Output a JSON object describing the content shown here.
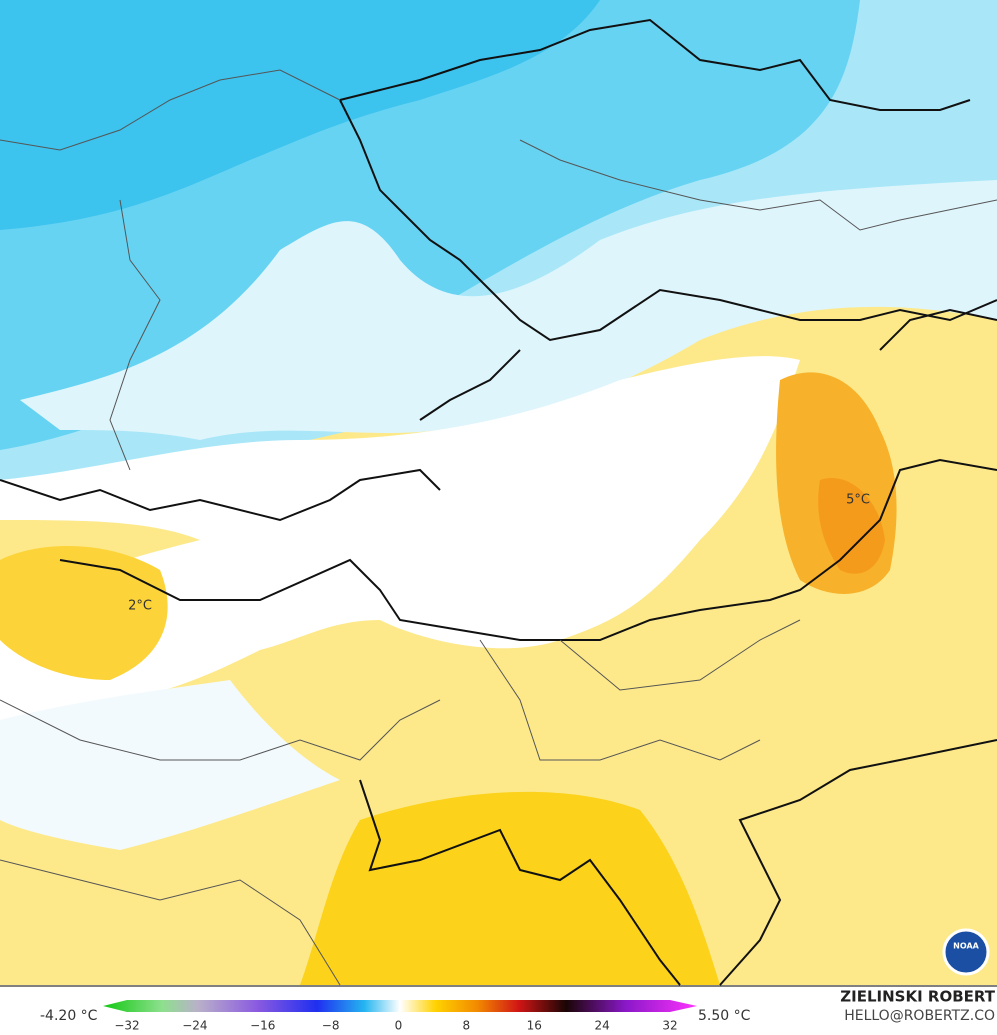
{
  "legend": {
    "min_label": "-4.20 °C",
    "max_label": "5.50 °C",
    "ticks": [
      "−32",
      "−24",
      "−16",
      "−8",
      "0",
      "8",
      "16",
      "24",
      "32"
    ]
  },
  "credit": {
    "name": "ZIELINSKI ROBERT",
    "contact": "HELLO@ROBERTZ.CO"
  },
  "annotations": [
    "2°C",
    "5°C"
  ],
  "logo": "NOAA"
}
